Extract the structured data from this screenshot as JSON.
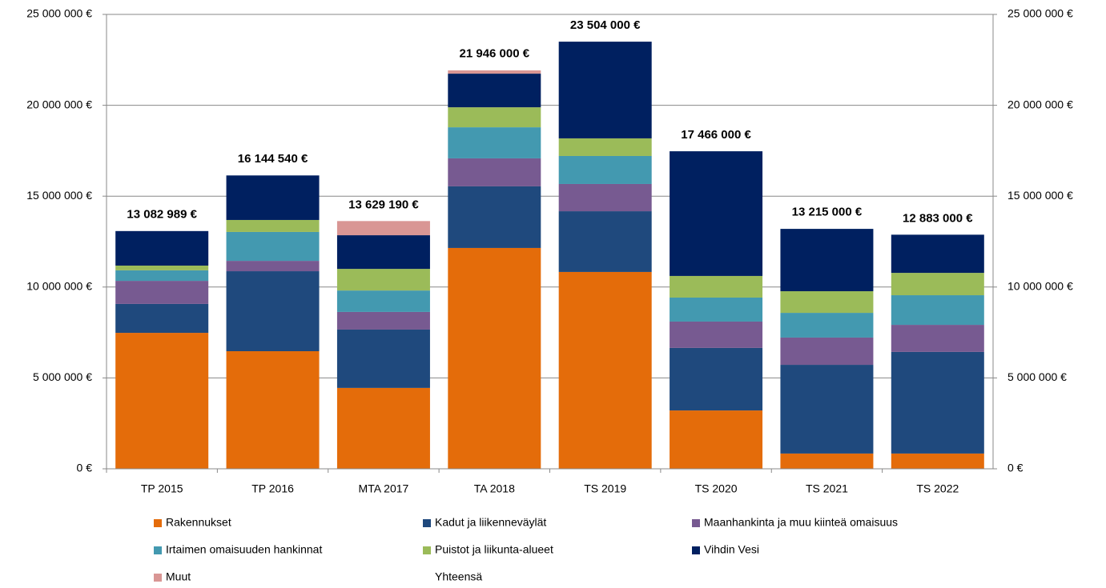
{
  "chart_data": {
    "type": "stacked-bar",
    "categories": [
      "TP 2015",
      "TP 2016",
      "MTA 2017",
      "TA 2018",
      "TS 2019",
      "TS 2020",
      "TS 2021",
      "TS 2022"
    ],
    "series": [
      {
        "name": "Rakennukset",
        "color": "#e46c0a",
        "values": [
          7480000,
          6470000,
          4450000,
          12150000,
          10830000,
          3210000,
          840000,
          840000
        ]
      },
      {
        "name": "Kadut ja liikenneväylät",
        "color": "#1f497d",
        "values": [
          1590000,
          4400000,
          3210000,
          3390000,
          3340000,
          3440000,
          4880000,
          5590000
        ]
      },
      {
        "name": "Maanhankinta ja muu kiinteä omaisuus",
        "color": "#775a91",
        "values": [
          1270000,
          570000,
          970000,
          1540000,
          1500000,
          1450000,
          1500000,
          1490000
        ]
      },
      {
        "name": "Irtaimen omaisuuden hankinnat",
        "color": "#4399b0",
        "values": [
          580000,
          1590000,
          1180000,
          1710000,
          1540000,
          1320000,
          1360000,
          1630000
        ]
      },
      {
        "name": "Puistot ja liikunta-alueet",
        "color": "#9bbb59",
        "values": [
          260000,
          660000,
          1190000,
          1100000,
          970000,
          1190000,
          1190000,
          1230000
        ]
      },
      {
        "name": "Vihdin Vesi",
        "color": "#002060",
        "values": [
          1900000,
          2450000,
          1850000,
          1850000,
          5320000,
          6860000,
          3430000,
          2100000
        ]
      },
      {
        "name": "Muut",
        "color": "#d99694",
        "values": [
          0,
          0,
          780000,
          180000,
          0,
          0,
          0,
          0
        ]
      },
      {
        "name": "Yhteensä",
        "values": [
          13082989,
          16144540,
          13629190,
          21946000,
          23504000,
          17466000,
          13215000,
          12883000
        ],
        "value_labels": [
          "13 082 989 €",
          "16 144 540 €",
          "13 629 190 €",
          "21 946 000 €",
          "23 504 000 €",
          "17 466 000 €",
          "13 215 000 €",
          "12 883 000 €"
        ]
      }
    ],
    "ylim": [
      0,
      25000000
    ],
    "yticks": [
      {
        "value": 0,
        "label": "0 €"
      },
      {
        "value": 5000000,
        "label": "5 000 000 €"
      },
      {
        "value": 10000000,
        "label": "10 000 000 €"
      },
      {
        "value": 15000000,
        "label": "15 000 000 €"
      },
      {
        "value": 20000000,
        "label": "20 000 000 €"
      },
      {
        "value": 25000000,
        "label": "25 000 000 €"
      }
    ],
    "y2lim": [
      0,
      25000000
    ],
    "y2ticks": [
      {
        "value": 0,
        "label": "0 €"
      },
      {
        "value": 5000000,
        "label": "5 000 000 €"
      },
      {
        "value": 10000000,
        "label": "10 000 000 €"
      },
      {
        "value": 15000000,
        "label": "15 000 000 €"
      },
      {
        "value": 20000000,
        "label": "20 000 000 €"
      },
      {
        "value": 25000000,
        "label": "25 000 000 €"
      }
    ],
    "grid": true
  }
}
